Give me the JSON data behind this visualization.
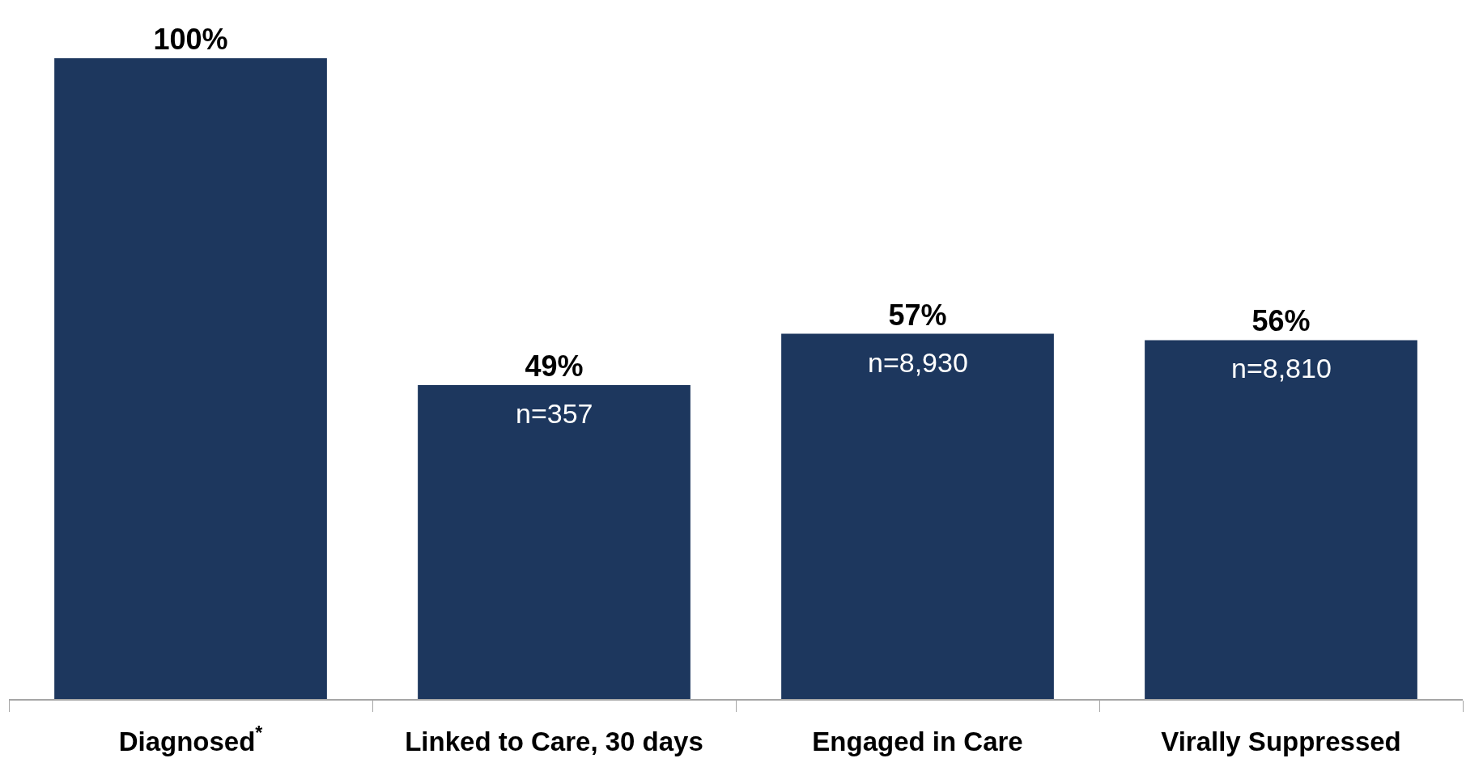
{
  "chart_data": {
    "type": "bar",
    "categories": [
      "Diagnosed$^{*}$",
      "Linked to Care, 30 days",
      "Engaged in Care",
      "Virally Suppressed"
    ],
    "values": [
      100,
      49,
      57,
      56
    ],
    "value_labels": [
      "100%",
      "49%",
      "57%",
      "56%"
    ],
    "color": "#1d375e",
    "annotations": [
      {
        "text": "n=357",
        "x": "Linked to Care, 30 days",
        "y": 49
      },
      {
        "text": "n=8,930",
        "x": "Engaged in Care",
        "y": 57
      },
      {
        "text": "n=8,810",
        "x": "Virally Suppressed",
        "y": 56
      }
    ],
    "legend": false
  }
}
